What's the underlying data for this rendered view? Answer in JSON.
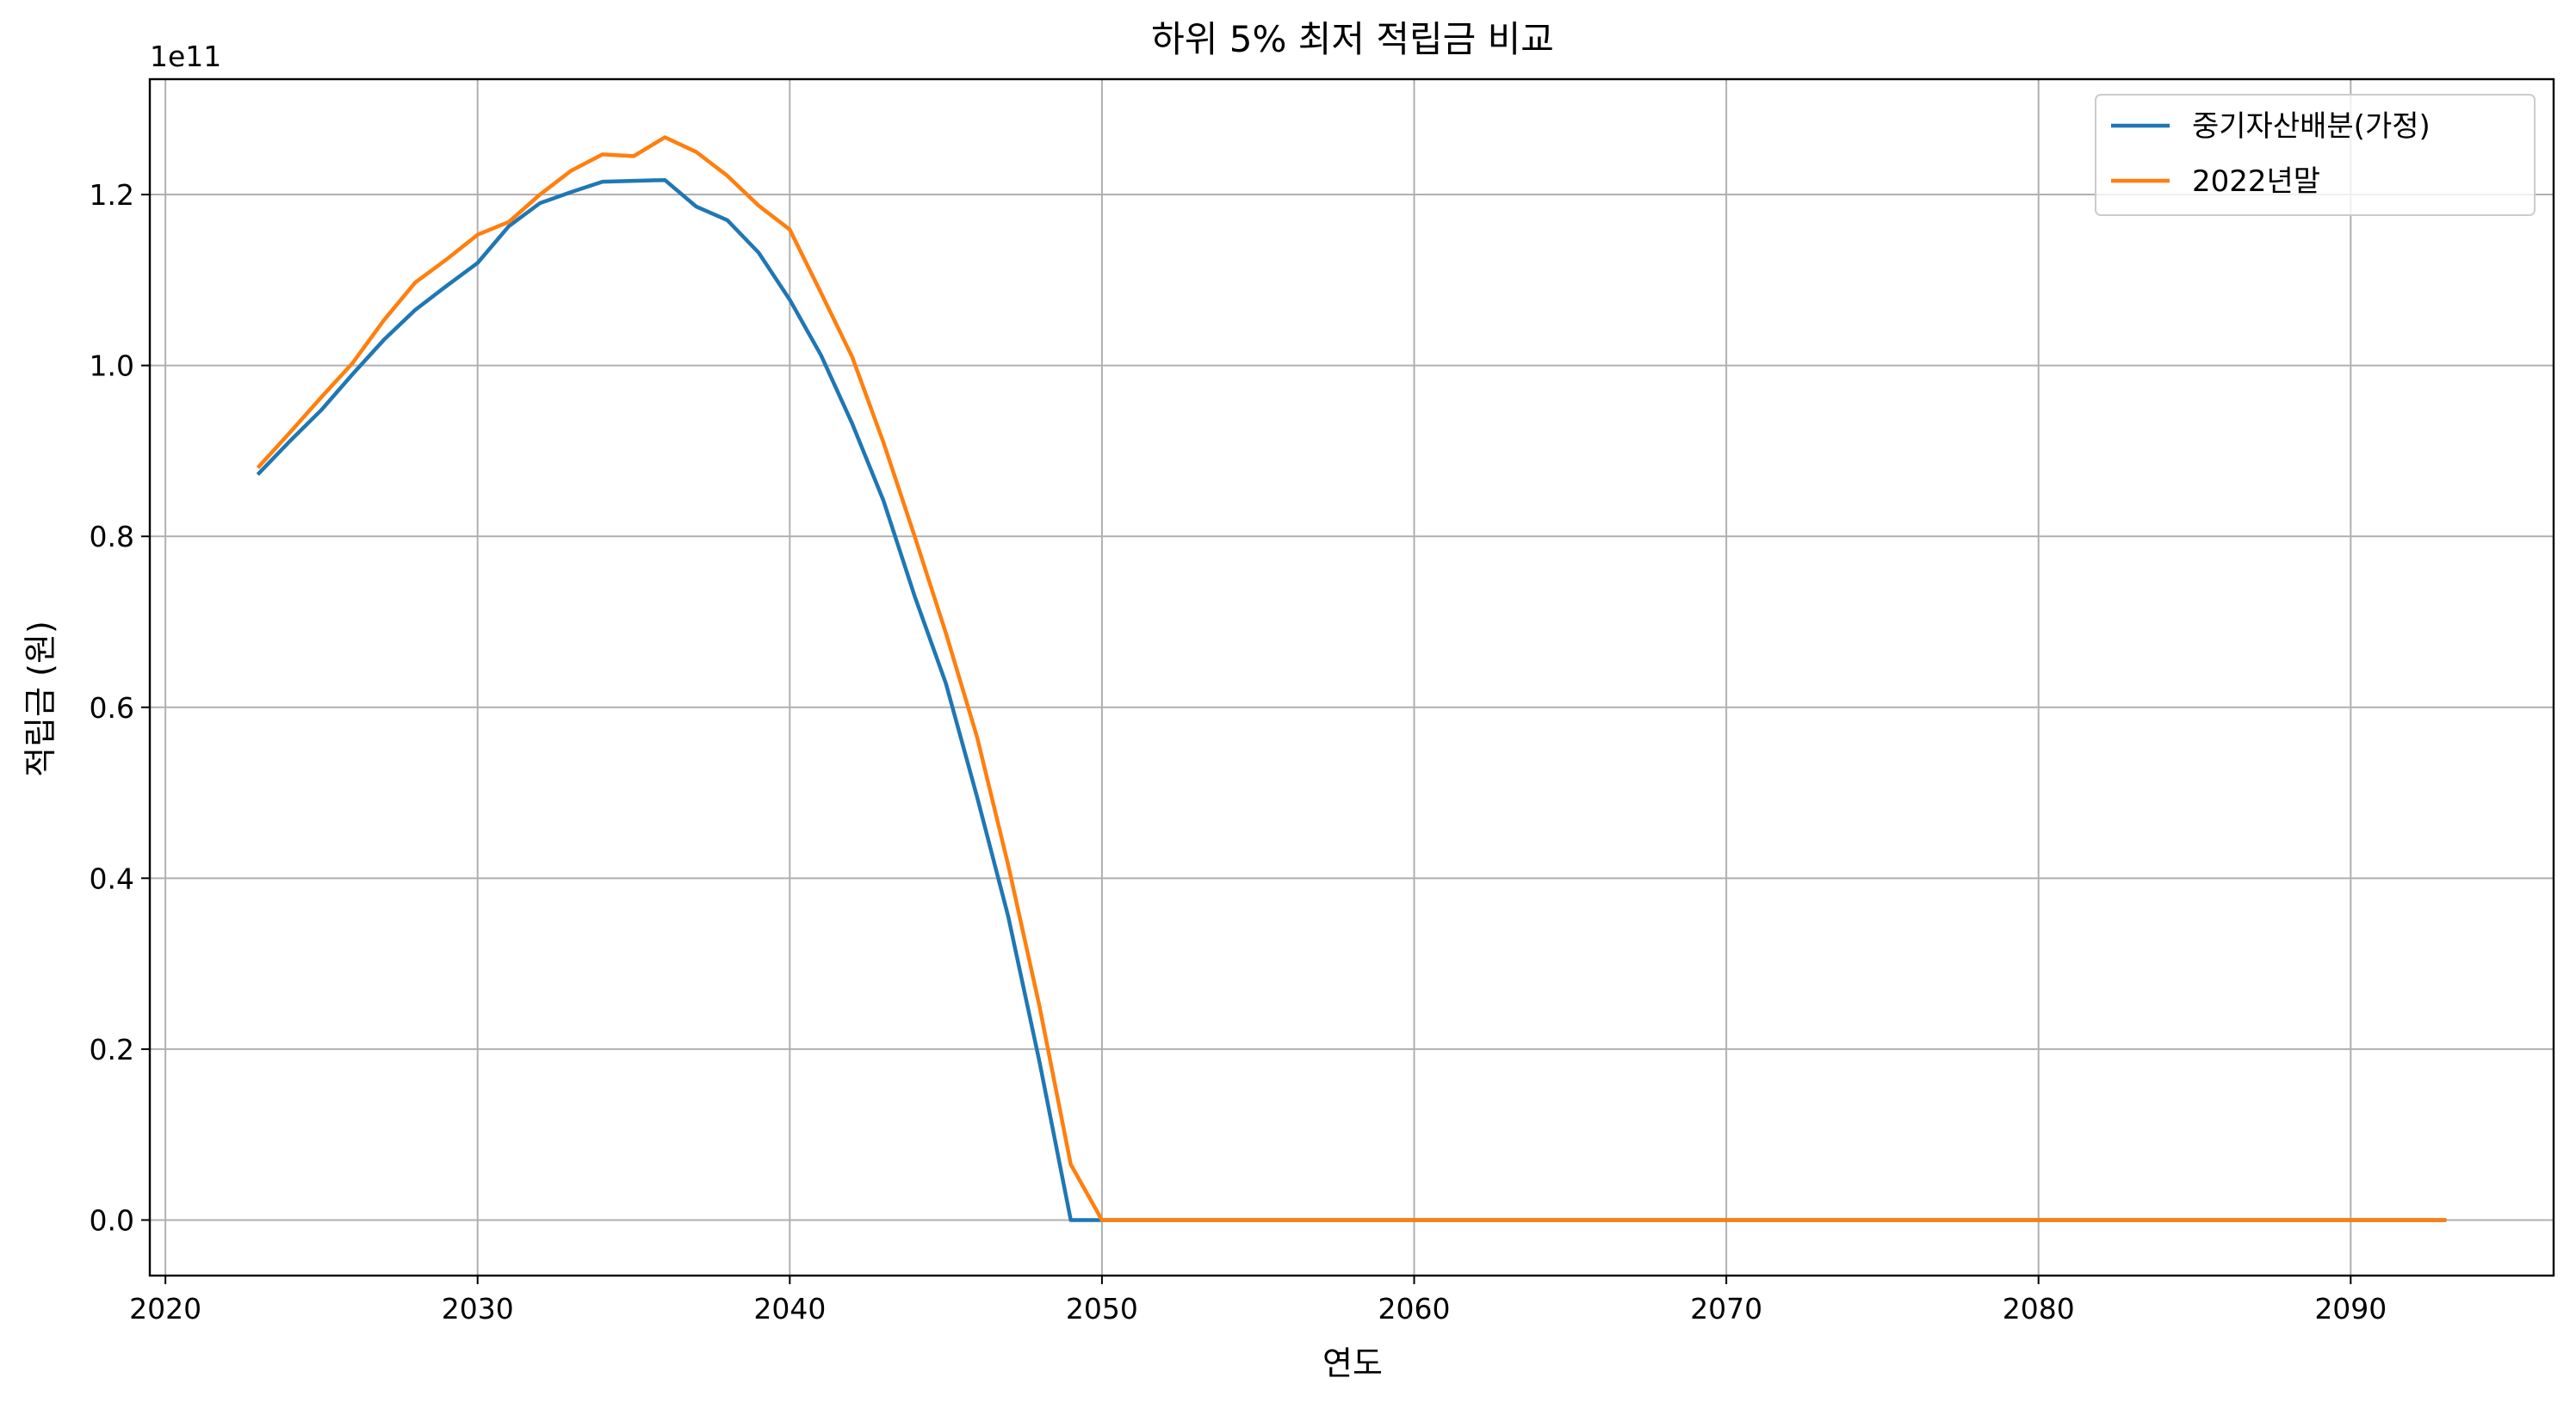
{
  "chart_data": {
    "type": "line",
    "title": "하위 5% 최저 적립금 비교",
    "xlabel": "연도",
    "ylabel": "적립금 (원)",
    "y_offset_label": "1e11",
    "xlim": [
      2019.5,
      2096.5
    ],
    "ylim": [
      -0.065,
      1.335
    ],
    "y_unit_note": "y values are in units of 1e11 (원)",
    "x_ticks": [
      2020,
      2030,
      2040,
      2050,
      2060,
      2070,
      2080,
      2090
    ],
    "x_tick_labels": [
      "2020",
      "2030",
      "2040",
      "2050",
      "2060",
      "2070",
      "2080",
      "2090"
    ],
    "y_ticks": [
      0.0,
      0.2,
      0.4,
      0.6,
      0.8,
      1.0,
      1.2
    ],
    "y_tick_labels": [
      "0.0",
      "0.2",
      "0.4",
      "0.6",
      "0.8",
      "1.0",
      "1.2"
    ],
    "grid": true,
    "legend_position": "top-right",
    "x": [
      2023,
      2024,
      2025,
      2026,
      2027,
      2028,
      2029,
      2030,
      2031,
      2032,
      2033,
      2034,
      2035,
      2036,
      2037,
      2038,
      2039,
      2040,
      2041,
      2042,
      2043,
      2044,
      2045,
      2046,
      2047,
      2048,
      2049,
      2050,
      2051,
      2052,
      2053,
      2054,
      2055,
      2056,
      2057,
      2058,
      2059,
      2060,
      2061,
      2062,
      2063,
      2064,
      2065,
      2066,
      2067,
      2068,
      2069,
      2070,
      2071,
      2072,
      2073,
      2074,
      2075,
      2076,
      2077,
      2078,
      2079,
      2080,
      2081,
      2082,
      2083,
      2084,
      2085,
      2086,
      2087,
      2088,
      2089,
      2090,
      2091,
      2092,
      2093
    ],
    "series": [
      {
        "name": "중기자산배분(가정)",
        "color": "#1f77b4",
        "values": [
          0.874,
          0.912,
          0.948,
          0.99,
          1.03,
          1.065,
          1.093,
          1.12,
          1.163,
          1.19,
          1.203,
          1.215,
          1.216,
          1.217,
          1.186,
          1.17,
          1.132,
          1.077,
          1.012,
          0.932,
          0.842,
          0.73,
          0.628,
          0.495,
          0.355,
          0.185,
          0.0,
          0.0,
          0.0,
          0.0,
          0.0,
          0.0,
          0.0,
          0.0,
          0.0,
          0.0,
          0.0,
          0.0,
          0.0,
          0.0,
          0.0,
          0.0,
          0.0,
          0.0,
          0.0,
          0.0,
          0.0,
          0.0,
          0.0,
          0.0,
          0.0,
          0.0,
          0.0,
          0.0,
          0.0,
          0.0,
          0.0,
          0.0,
          0.0,
          0.0,
          0.0,
          0.0,
          0.0,
          0.0,
          0.0,
          0.0,
          0.0,
          0.0,
          0.0,
          0.0,
          0.0
        ]
      },
      {
        "name": "2022년말",
        "color": "#ff7f0e",
        "values": [
          0.882,
          0.922,
          0.963,
          1.003,
          1.053,
          1.097,
          1.124,
          1.153,
          1.168,
          1.2,
          1.228,
          1.247,
          1.245,
          1.267,
          1.25,
          1.222,
          1.187,
          1.159,
          1.085,
          1.01,
          0.91,
          0.8,
          0.687,
          0.565,
          0.415,
          0.25,
          0.065,
          0.0,
          0.0,
          0.0,
          0.0,
          0.0,
          0.0,
          0.0,
          0.0,
          0.0,
          0.0,
          0.0,
          0.0,
          0.0,
          0.0,
          0.0,
          0.0,
          0.0,
          0.0,
          0.0,
          0.0,
          0.0,
          0.0,
          0.0,
          0.0,
          0.0,
          0.0,
          0.0,
          0.0,
          0.0,
          0.0,
          0.0,
          0.0,
          0.0,
          0.0,
          0.0,
          0.0,
          0.0,
          0.0,
          0.0,
          0.0,
          0.0,
          0.0,
          0.0,
          0.0
        ]
      }
    ]
  }
}
